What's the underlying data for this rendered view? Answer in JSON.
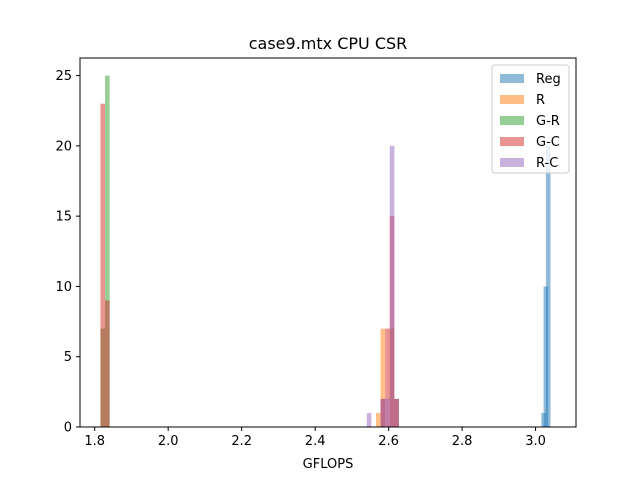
{
  "chart_data": {
    "type": "histogram",
    "title": "case9.mtx CPU CSR",
    "xlabel": "GFLOPS",
    "ylabel": "",
    "xlim": [
      1.76,
      3.11
    ],
    "ylim": [
      0,
      26.25
    ],
    "xticks": [
      "1.8",
      "2.0",
      "2.2",
      "2.4",
      "2.6",
      "2.8",
      "3.0"
    ],
    "yticks": [
      "0",
      "5",
      "10",
      "15",
      "20",
      "25"
    ],
    "legend_position": "top-right",
    "bin_width": 0.0125,
    "series": [
      {
        "name": "Reg",
        "color": "#1f77b4",
        "bins": [
          {
            "x": 3.0219,
            "count": 1
          },
          {
            "x": 3.0281,
            "count": 10
          },
          {
            "x": 3.0344,
            "count": 20
          }
        ]
      },
      {
        "name": "R",
        "color": "#ff7f0e",
        "bins": [
          {
            "x": 2.5719,
            "count": 1
          },
          {
            "x": 2.5844,
            "count": 7
          },
          {
            "x": 2.6094,
            "count": 7
          },
          {
            "x": 2.6219,
            "count": 2
          }
        ]
      },
      {
        "name": "G-R",
        "color": "#2ca02c",
        "bins": [
          {
            "x": 1.8219,
            "count": 7
          },
          {
            "x": 1.8344,
            "count": 25
          }
        ]
      },
      {
        "name": "G-C",
        "color": "#d62728",
        "bins": [
          {
            "x": 1.8219,
            "count": 23
          },
          {
            "x": 1.8344,
            "count": 9
          },
          {
            "x": 2.5844,
            "count": 2
          },
          {
            "x": 2.5969,
            "count": 7
          },
          {
            "x": 2.6094,
            "count": 15
          },
          {
            "x": 2.6219,
            "count": 2
          }
        ]
      },
      {
        "name": "R-C",
        "color": "#9467bd",
        "bins": [
          {
            "x": 2.5469,
            "count": 1
          },
          {
            "x": 2.5844,
            "count": 2
          },
          {
            "x": 2.5969,
            "count": 2
          },
          {
            "x": 2.6094,
            "count": 20
          },
          {
            "x": 2.6219,
            "count": 2
          }
        ]
      }
    ]
  }
}
